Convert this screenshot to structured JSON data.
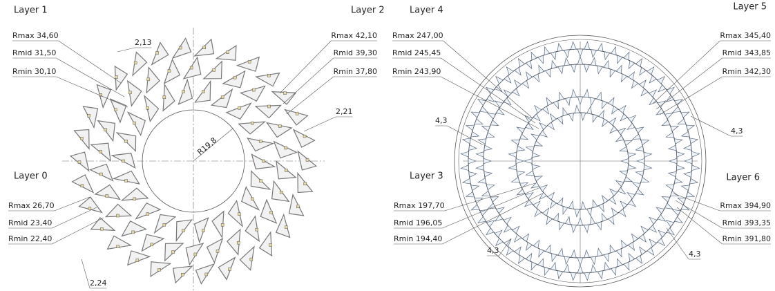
{
  "left_view": {
    "layers": [
      {
        "name": "Layer 0",
        "rmax": "Rmax 26,70",
        "rmid": "Rmid 23,40",
        "rmin": "Rmin 22,40"
      },
      {
        "name": "Layer 1",
        "rmax": "Rmax 34,60",
        "rmid": "Rmid 31,50",
        "rmin": "Rmin 30,10"
      },
      {
        "name": "Layer 2",
        "rmax": "Rmax 42,10",
        "rmid": "Rmid 39,30",
        "rmin": "Rmin 37,80"
      }
    ],
    "gaps": [
      "2,13",
      "2,21",
      "2,24"
    ],
    "bore_radius": "R19,8"
  },
  "right_view": {
    "layers": [
      {
        "name": "Layer 3",
        "rmax": "Rmax 197,70",
        "rmid": "Rmid 196,05",
        "rmin": "Rmin 194,40"
      },
      {
        "name": "Layer 4",
        "rmax": "Rmax 247,00",
        "rmid": "Rmid 245,45",
        "rmin": "Rmin 243,90"
      },
      {
        "name": "Layer 5",
        "rmax": "Rmax 345,40",
        "rmid": "Rmid 343,85",
        "rmin": "Rmin 342,30"
      },
      {
        "name": "Layer 6",
        "rmax": "Rmax 394,90",
        "rmid": "Rmid 393,35",
        "rmin": "Rmin 391,80"
      }
    ],
    "gaps": [
      "4,3",
      "4,3",
      "4,3",
      "4,3"
    ]
  }
}
